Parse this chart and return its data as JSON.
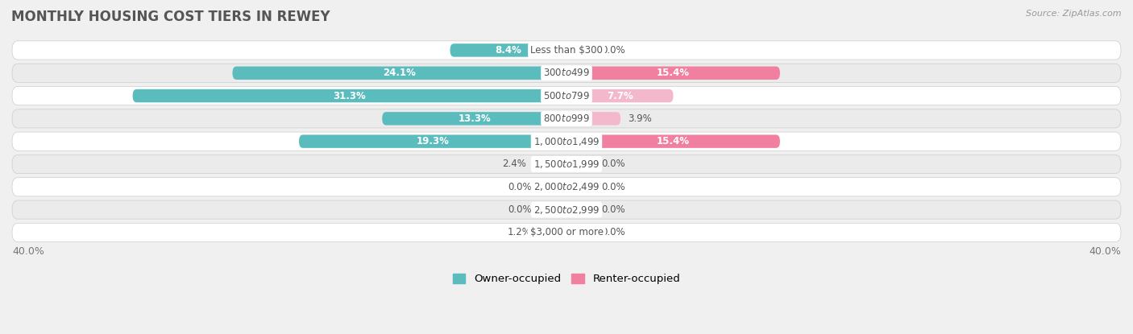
{
  "title": "MONTHLY HOUSING COST TIERS IN REWEY",
  "source": "Source: ZipAtlas.com",
  "categories": [
    "Less than $300",
    "$300 to $499",
    "$500 to $799",
    "$800 to $999",
    "$1,000 to $1,499",
    "$1,500 to $1,999",
    "$2,000 to $2,499",
    "$2,500 to $2,999",
    "$3,000 or more"
  ],
  "owner_values": [
    8.4,
    24.1,
    31.3,
    13.3,
    19.3,
    2.4,
    0.0,
    0.0,
    1.2
  ],
  "renter_values": [
    0.0,
    15.4,
    7.7,
    3.9,
    15.4,
    0.0,
    0.0,
    0.0,
    0.0
  ],
  "owner_color": "#5bbcbe",
  "renter_color": "#f07fa0",
  "renter_color_light": "#f4b8cc",
  "owner_label": "Owner-occupied",
  "renter_label": "Renter-occupied",
  "axis_limit": 40.0,
  "axis_label_left": "40.0%",
  "axis_label_right": "40.0%",
  "background_color": "#f0f0f0",
  "row_bg_color": "#ffffff",
  "row_alt_bg_color": "#f0f0f0",
  "title_color": "#555555",
  "label_color_outside": "#555555",
  "center_label_color": "#555555",
  "stub_size": 2.0,
  "figsize": [
    14.06,
    4.15
  ],
  "dpi": 100
}
